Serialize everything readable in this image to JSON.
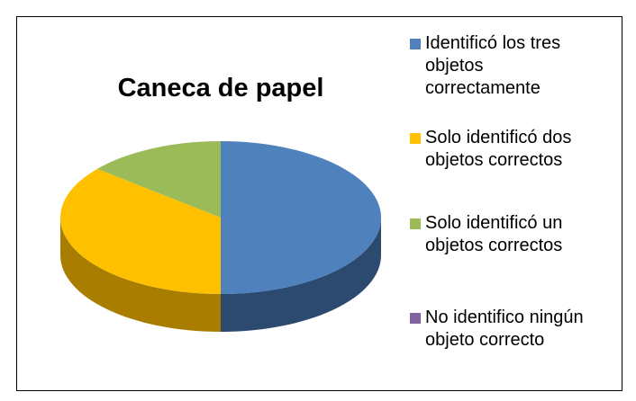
{
  "chart_data": {
    "type": "pie",
    "title": "Caneca de papel",
    "categories": [
      "Identificó los tres objetos correctamente",
      "Solo identificó dos objetos correctos",
      "Solo identificó un objetos correctos",
      "No identifico ningún objeto correcto"
    ],
    "values": [
      50,
      36,
      14,
      0
    ],
    "colors": [
      "#4f81bd",
      "#ffc000",
      "#9bbb59",
      "#8064a2"
    ],
    "side_colors": [
      "#2c4a70",
      "#a87d00",
      "#5e7a30",
      "#4d3a66"
    ],
    "three_d": true,
    "legend": "right"
  }
}
